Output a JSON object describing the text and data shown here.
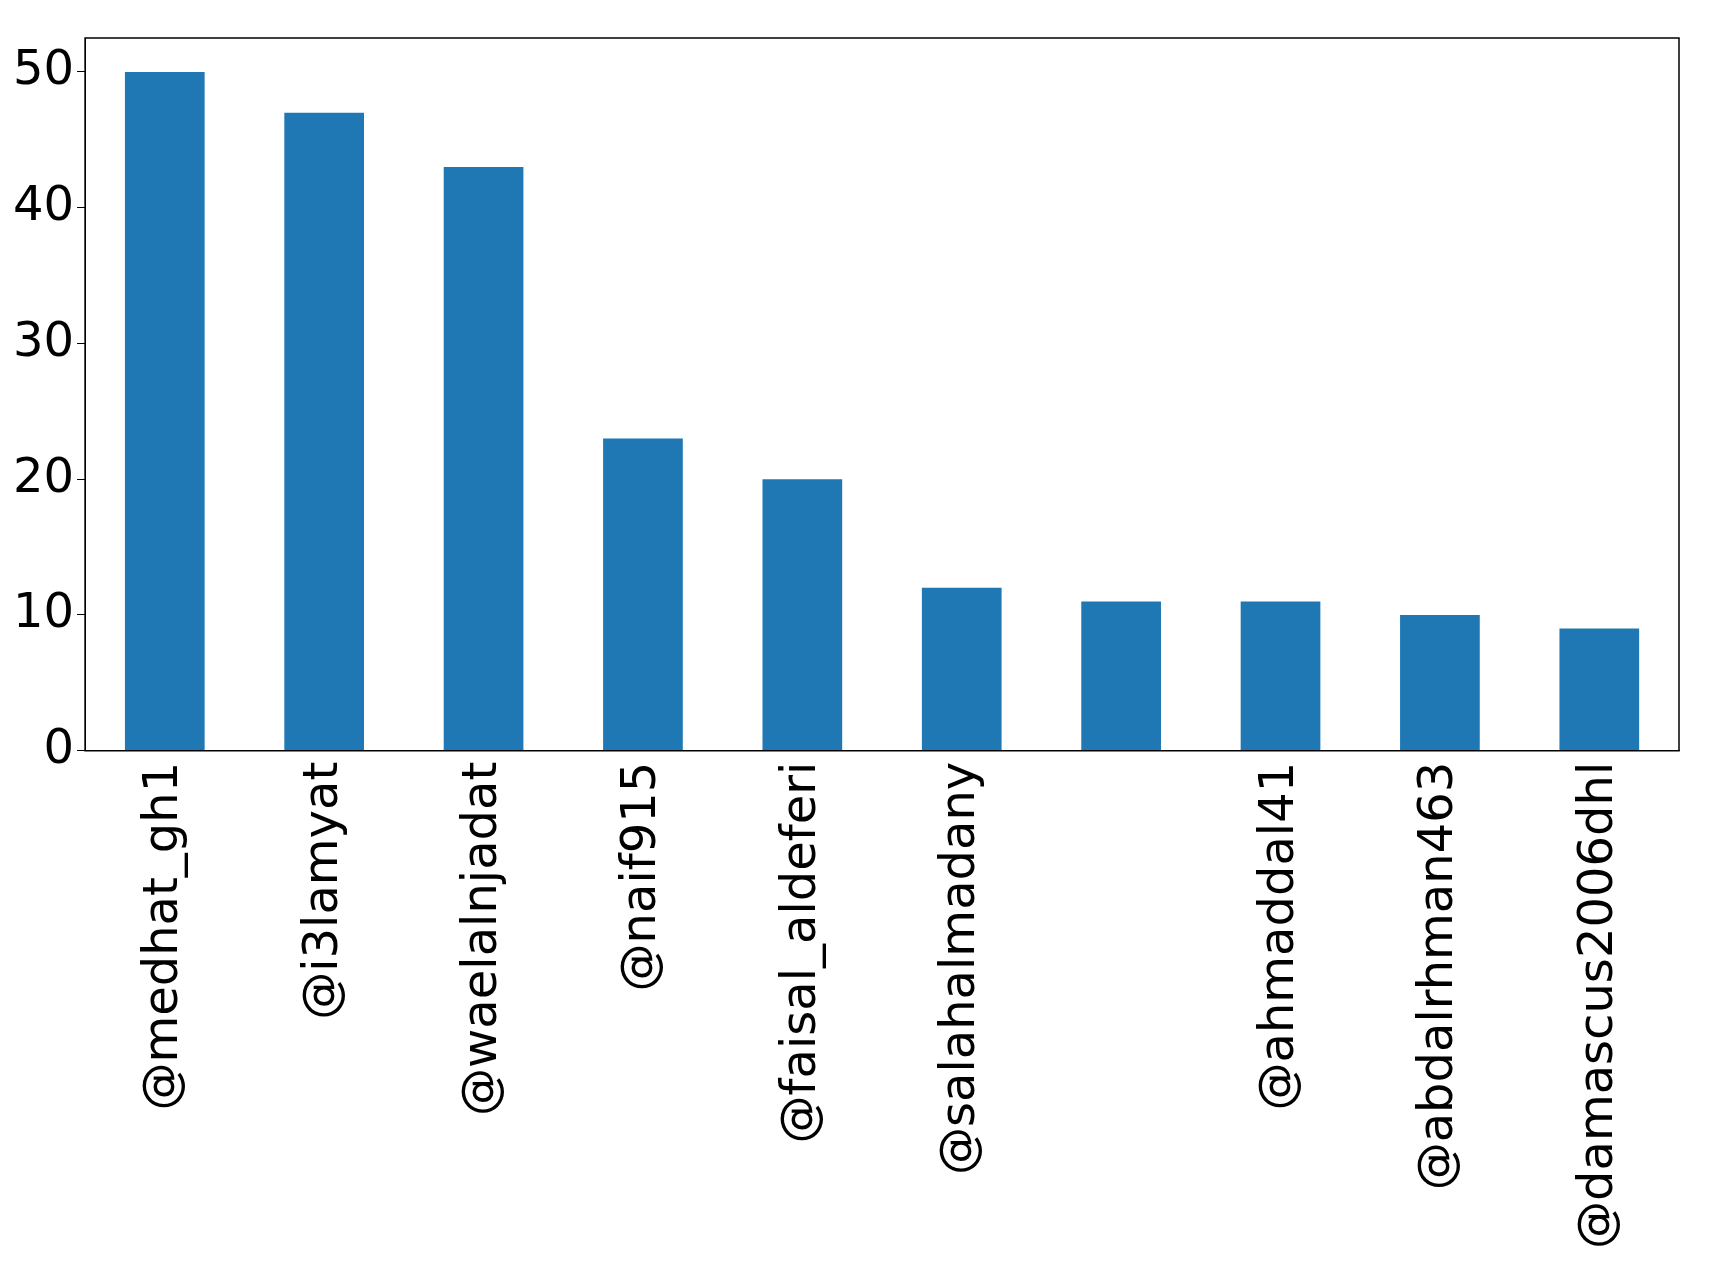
{
  "chart_data": {
    "type": "bar",
    "categories": [
      "@medhat_gh1",
      "@i3lamyat",
      "@waelalnjadat",
      "@naif915",
      "@faisal_aldeferi",
      "@salahalmadany",
      null,
      "@ahmaddal41",
      "@abdalrhman463",
      "@damascus2006dhl"
    ],
    "values": [
      50,
      47,
      43,
      23,
      20,
      12,
      11,
      11,
      10,
      9
    ],
    "color": "#1f77b4",
    "ylim": [
      0,
      52.5
    ],
    "yticks": [
      0,
      10,
      20,
      30,
      40,
      50
    ],
    "grid": false,
    "legend": false
  }
}
